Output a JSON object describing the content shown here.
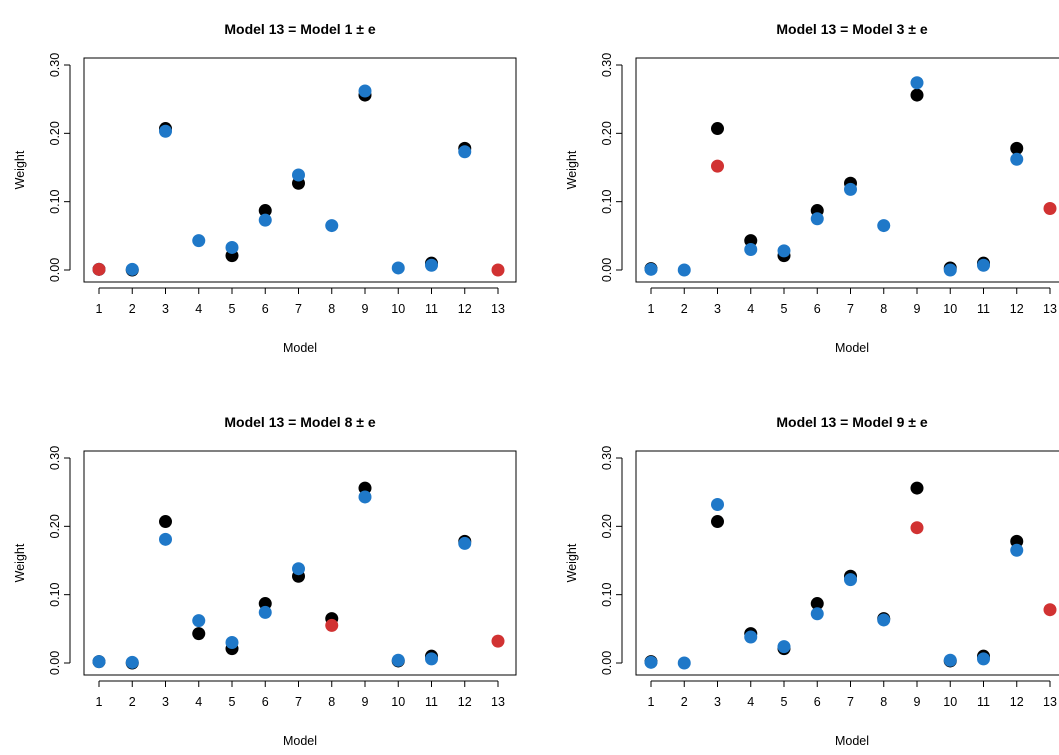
{
  "figure": {
    "background": "#ffffff",
    "colors": {
      "reference": "#000000",
      "estimate": "#1f78c8",
      "highlight": "#d13232",
      "axis": "#000000"
    }
  },
  "chart_data": [
    {
      "type": "scatter",
      "title": "Model 13 = Model 1 ± e",
      "xlabel": "Model",
      "ylabel": "Weight",
      "xlim": [
        1,
        13
      ],
      "ylim": [
        0,
        0.3
      ],
      "x_ticks": [
        "1",
        "2",
        "3",
        "4",
        "5",
        "6",
        "7",
        "8",
        "9",
        "10",
        "11",
        "12",
        "13"
      ],
      "y_ticks": [
        "0.00",
        "0.10",
        "0.20",
        "0.30"
      ],
      "y_tick_values": [
        0,
        0.1,
        0.2,
        0.3
      ],
      "grid": false,
      "points": [
        {
          "x": 1,
          "black": 0.001,
          "blue": 0.001,
          "red_blue": true
        },
        {
          "x": 2,
          "black": 0.0,
          "blue": 0.001
        },
        {
          "x": 3,
          "black": 0.207,
          "blue": 0.203
        },
        {
          "x": 4,
          "black": null,
          "blue": 0.043
        },
        {
          "x": 5,
          "black": 0.021,
          "blue": 0.033
        },
        {
          "x": 6,
          "black": 0.087,
          "blue": 0.073
        },
        {
          "x": 7,
          "black": 0.127,
          "blue": 0.139
        },
        {
          "x": 8,
          "black": null,
          "blue": 0.065
        },
        {
          "x": 9,
          "black": 0.256,
          "blue": 0.262
        },
        {
          "x": 10,
          "black": null,
          "blue": 0.003
        },
        {
          "x": 11,
          "black": 0.01,
          "blue": 0.007
        },
        {
          "x": 12,
          "black": 0.178,
          "blue": 0.173
        },
        {
          "x": 13,
          "black": null,
          "blue": null,
          "red": 0.0
        }
      ]
    },
    {
      "type": "scatter",
      "title": "Model 13 = Model 3 ± e",
      "xlabel": "Model",
      "ylabel": "Weight",
      "xlim": [
        1,
        13
      ],
      "ylim": [
        0,
        0.3
      ],
      "x_ticks": [
        "1",
        "2",
        "3",
        "4",
        "5",
        "6",
        "7",
        "8",
        "9",
        "10",
        "11",
        "12",
        "13"
      ],
      "y_ticks": [
        "0.00",
        "0.10",
        "0.20",
        "0.30"
      ],
      "y_tick_values": [
        0,
        0.1,
        0.2,
        0.3
      ],
      "grid": false,
      "points": [
        {
          "x": 1,
          "black": 0.002,
          "blue": 0.001
        },
        {
          "x": 2,
          "black": null,
          "blue": 0.0
        },
        {
          "x": 3,
          "black": 0.207,
          "blue": null,
          "red": 0.152
        },
        {
          "x": 4,
          "black": 0.043,
          "blue": 0.03
        },
        {
          "x": 5,
          "black": 0.021,
          "blue": 0.028
        },
        {
          "x": 6,
          "black": 0.087,
          "blue": 0.075
        },
        {
          "x": 7,
          "black": 0.127,
          "blue": 0.118
        },
        {
          "x": 8,
          "black": null,
          "blue": 0.065
        },
        {
          "x": 9,
          "black": 0.256,
          "blue": 0.274
        },
        {
          "x": 10,
          "black": 0.003,
          "blue": 0.0
        },
        {
          "x": 11,
          "black": 0.01,
          "blue": 0.007
        },
        {
          "x": 12,
          "black": 0.178,
          "blue": 0.162
        },
        {
          "x": 13,
          "black": null,
          "blue": null,
          "red": 0.09
        }
      ]
    },
    {
      "type": "scatter",
      "title": "Model 13 = Model 8 ± e",
      "xlabel": "Model",
      "ylabel": "Weight",
      "xlim": [
        1,
        13
      ],
      "ylim": [
        0,
        0.3
      ],
      "x_ticks": [
        "1",
        "2",
        "3",
        "4",
        "5",
        "6",
        "7",
        "8",
        "9",
        "10",
        "11",
        "12",
        "13"
      ],
      "y_ticks": [
        "0.00",
        "0.10",
        "0.20",
        "0.30"
      ],
      "y_tick_values": [
        0,
        0.1,
        0.2,
        0.3
      ],
      "grid": false,
      "points": [
        {
          "x": 1,
          "black": 0.002,
          "blue": 0.002
        },
        {
          "x": 2,
          "black": 0.0,
          "blue": 0.001
        },
        {
          "x": 3,
          "black": 0.207,
          "blue": 0.181
        },
        {
          "x": 4,
          "black": 0.043,
          "blue": 0.062
        },
        {
          "x": 5,
          "black": 0.021,
          "blue": 0.03
        },
        {
          "x": 6,
          "black": 0.087,
          "blue": 0.074
        },
        {
          "x": 7,
          "black": 0.127,
          "blue": 0.138
        },
        {
          "x": 8,
          "black": 0.065,
          "blue": null,
          "red": 0.055
        },
        {
          "x": 9,
          "black": 0.256,
          "blue": 0.243
        },
        {
          "x": 10,
          "black": 0.003,
          "blue": 0.004
        },
        {
          "x": 11,
          "black": 0.01,
          "blue": 0.006
        },
        {
          "x": 12,
          "black": 0.178,
          "blue": 0.175
        },
        {
          "x": 13,
          "black": null,
          "blue": null,
          "red": 0.032
        }
      ]
    },
    {
      "type": "scatter",
      "title": "Model 13 = Model 9 ± e",
      "xlabel": "Model",
      "ylabel": "Weight",
      "xlim": [
        1,
        13
      ],
      "ylim": [
        0,
        0.3
      ],
      "x_ticks": [
        "1",
        "2",
        "3",
        "4",
        "5",
        "6",
        "7",
        "8",
        "9",
        "10",
        "11",
        "12",
        "13"
      ],
      "y_ticks": [
        "0.00",
        "0.10",
        "0.20",
        "0.30"
      ],
      "y_tick_values": [
        0,
        0.1,
        0.2,
        0.3
      ],
      "grid": false,
      "points": [
        {
          "x": 1,
          "black": 0.002,
          "blue": 0.001
        },
        {
          "x": 2,
          "black": null,
          "blue": 0.0
        },
        {
          "x": 3,
          "black": 0.207,
          "blue": 0.232
        },
        {
          "x": 4,
          "black": 0.043,
          "blue": 0.038
        },
        {
          "x": 5,
          "black": 0.021,
          "blue": 0.024
        },
        {
          "x": 6,
          "black": 0.087,
          "blue": 0.072
        },
        {
          "x": 7,
          "black": 0.127,
          "blue": 0.122
        },
        {
          "x": 8,
          "black": 0.065,
          "blue": 0.063
        },
        {
          "x": 9,
          "black": 0.256,
          "blue": null,
          "red": 0.198
        },
        {
          "x": 10,
          "black": 0.003,
          "blue": 0.004
        },
        {
          "x": 11,
          "black": 0.01,
          "blue": 0.006
        },
        {
          "x": 12,
          "black": 0.178,
          "blue": 0.165
        },
        {
          "x": 13,
          "black": null,
          "blue": null,
          "red": 0.078
        }
      ]
    }
  ]
}
